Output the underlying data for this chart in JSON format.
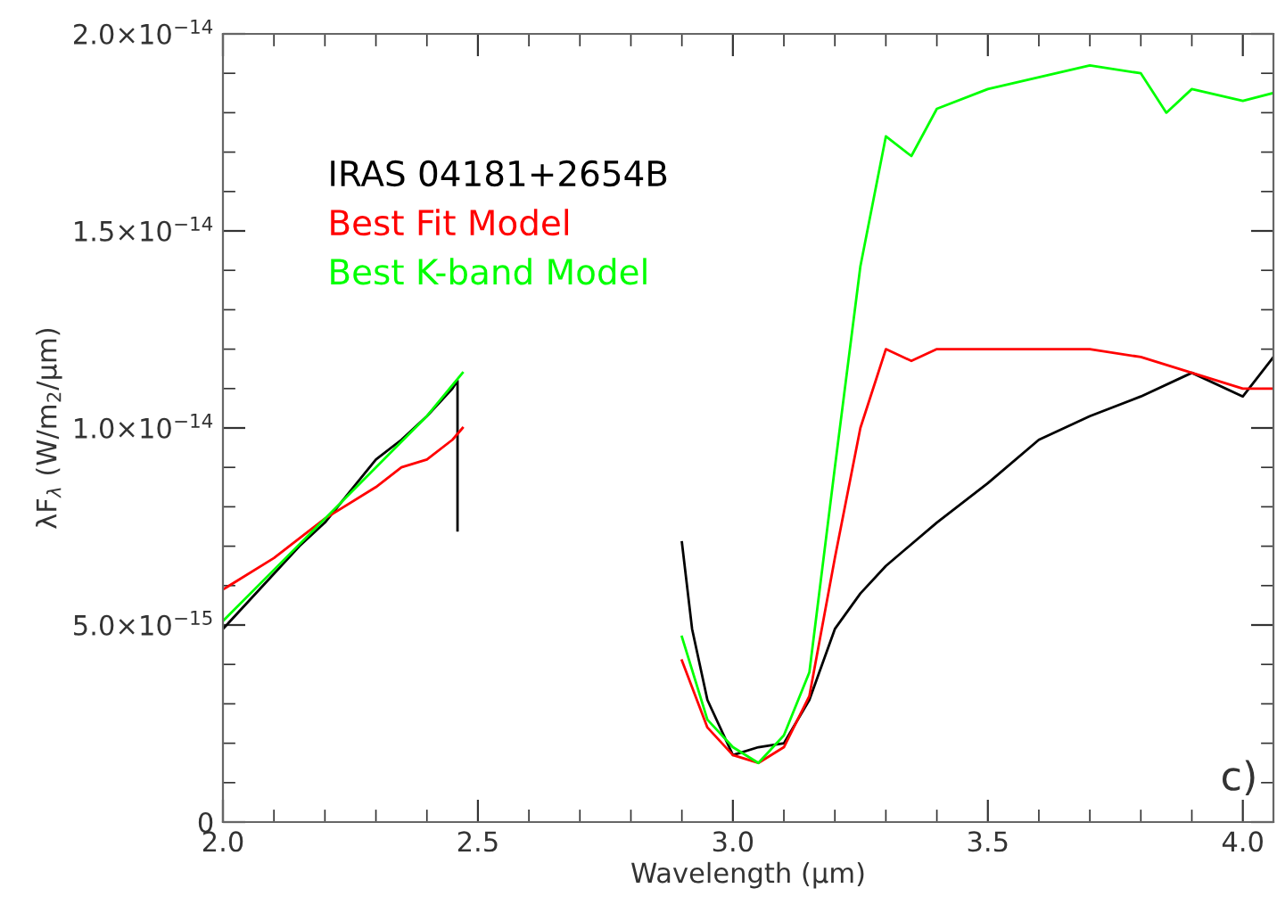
{
  "chart_data": {
    "type": "line",
    "xlabel": "Wavelength (μm)",
    "ylabel": "λF$_{λ}$ (W/m$_{2}$/μm)",
    "xlim": [
      2.0,
      4.06
    ],
    "ylim": [
      0,
      2e-14
    ],
    "xticks": [
      {
        "value": 2.0,
        "label": "2.0"
      },
      {
        "value": 2.5,
        "label": "2.5"
      },
      {
        "value": 3.0,
        "label": "3.0"
      },
      {
        "value": 3.5,
        "label": "3.5"
      },
      {
        "value": 4.0,
        "label": "4.0"
      }
    ],
    "yticks": [
      0,
      {
        "value": 5e-15,
        "label": "5.0×10$^{−15}$"
      },
      {
        "value": 1e-14,
        "label": "1.0×10$^{−14}$"
      },
      {
        "value": 1.5e-14,
        "label": "1.5×10$^{−14}$"
      },
      {
        "value": 2e-14,
        "label": "2.0×10$^{−14}$"
      }
    ],
    "series": [
      {
        "name": "IRAS 04181+2654B",
        "color": "#000000",
        "x": [
          2.0,
          2.05,
          2.1,
          2.15,
          2.2,
          2.25,
          2.3,
          2.35,
          2.4,
          2.45,
          2.46,
          2.46,
          2.7,
          2.9,
          2.92,
          2.95,
          3.0,
          3.05,
          3.1,
          3.15,
          3.2,
          3.25,
          3.3,
          3.4,
          3.5,
          3.6,
          3.7,
          3.8,
          3.9,
          4.0,
          4.06
        ],
        "values": [
          4.9e-15,
          5.6e-15,
          6.3e-15,
          7e-15,
          7.6e-15,
          8.4e-15,
          9.2e-15,
          9.7e-15,
          1.03e-14,
          1.1e-14,
          1.12e-14,
          7.4e-15,
          null,
          7.1e-15,
          4.9e-15,
          3.1e-15,
          1.7e-15,
          1.9e-15,
          2e-15,
          3.1e-15,
          4.9e-15,
          5.8e-15,
          6.5e-15,
          7.6e-15,
          8.6e-15,
          9.7e-15,
          1.03e-14,
          1.08e-14,
          1.14e-14,
          1.08e-14,
          1.18e-14
        ]
      },
      {
        "name": "Best Fit Model",
        "color": "#ff0000",
        "x": [
          2.0,
          2.1,
          2.2,
          2.3,
          2.35,
          2.4,
          2.45,
          2.47,
          2.7,
          2.9,
          2.95,
          3.0,
          3.05,
          3.1,
          3.15,
          3.2,
          3.25,
          3.28,
          3.3,
          3.35,
          3.4,
          3.5,
          3.7,
          3.8,
          3.9,
          4.0,
          4.06
        ],
        "values": [
          5.9e-15,
          6.7e-15,
          7.7e-15,
          8.5e-15,
          9e-15,
          9.2e-15,
          9.7e-15,
          1e-14,
          null,
          4.1e-15,
          2.4e-15,
          1.7e-15,
          1.5e-15,
          1.9e-15,
          3.2e-15,
          6.7e-15,
          1e-14,
          1.12e-14,
          1.2e-14,
          1.17e-14,
          1.2e-14,
          1.2e-14,
          1.2e-14,
          1.18e-14,
          1.14e-14,
          1.1e-14,
          1.1e-14
        ]
      },
      {
        "name": "Best K-band Model",
        "color": "#00ff00",
        "x": [
          2.0,
          2.1,
          2.2,
          2.3,
          2.4,
          2.47,
          2.7,
          2.9,
          2.95,
          3.0,
          3.05,
          3.1,
          3.15,
          3.2,
          3.25,
          3.3,
          3.35,
          3.4,
          3.5,
          3.6,
          3.7,
          3.8,
          3.85,
          3.9,
          4.0,
          4.06
        ],
        "values": [
          5.1e-15,
          6.4e-15,
          7.7e-15,
          9e-15,
          1.03e-14,
          1.14e-14,
          null,
          4.7e-15,
          2.6e-15,
          1.9e-15,
          1.5e-15,
          2.2e-15,
          3.8e-15,
          9e-15,
          1.41e-14,
          1.74e-14,
          1.69e-14,
          1.81e-14,
          1.86e-14,
          1.89e-14,
          1.92e-14,
          1.9e-14,
          1.8e-14,
          1.86e-14,
          1.83e-14,
          1.85e-14
        ]
      }
    ],
    "legend": "top left",
    "marker": "none",
    "line_style": "solid",
    "grid": false,
    "annotations": [
      "c)"
    ]
  }
}
